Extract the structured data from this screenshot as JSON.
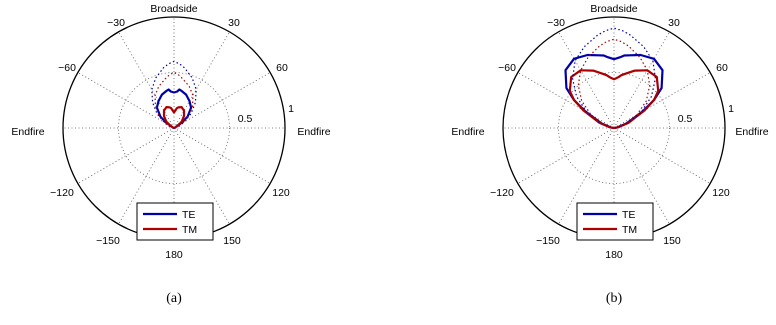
{
  "chart_data": [
    {
      "type": "polar-line",
      "caption": "(a)",
      "direction_labels": {
        "top": "Broadside",
        "left": "Endfire",
        "right": "Endfire"
      },
      "angle_ticks": [
        "−30",
        "30",
        "−60",
        "60",
        "−120",
        "120",
        "−150",
        "150",
        "180"
      ],
      "radial_ticks": [
        "0.5",
        "1"
      ],
      "rlim": [
        0,
        1
      ],
      "grid": true,
      "legend": {
        "placement": "bottom",
        "entries": [
          "TE",
          "TM"
        ]
      },
      "series": [
        {
          "name": "TE",
          "color": "#0000aa",
          "line": "solid",
          "angle_deg": [
            0,
            5,
            8,
            12,
            20,
            30,
            40,
            50,
            55,
            60,
            70,
            80,
            90
          ],
          "r": [
            0.32,
            0.33,
            0.35,
            0.34,
            0.32,
            0.28,
            0.24,
            0.16,
            0.09,
            0.02,
            0.01,
            0,
            0
          ]
        },
        {
          "name": "TM",
          "color": "#aa0000",
          "line": "solid",
          "angle_deg": [
            0,
            5,
            8,
            12,
            20,
            30,
            40,
            50,
            55,
            60,
            70,
            80,
            90
          ],
          "r": [
            0.14,
            0.16,
            0.18,
            0.19,
            0.2,
            0.18,
            0.14,
            0.09,
            0.05,
            0.02,
            0.01,
            0,
            0
          ]
        },
        {
          "name": "",
          "color": "#0000aa",
          "line": "dotted",
          "angle_deg": [
            0,
            5,
            10,
            20,
            30,
            40,
            50,
            60,
            70,
            80,
            90
          ],
          "r": [
            0.6,
            0.58,
            0.55,
            0.48,
            0.4,
            0.3,
            0.2,
            0.1,
            0.05,
            0.02,
            0
          ]
        },
        {
          "name": "",
          "color": "#aa0000",
          "line": "dotted",
          "angle_deg": [
            0,
            5,
            10,
            20,
            30,
            40,
            50,
            60,
            70,
            80,
            90
          ],
          "r": [
            0.5,
            0.48,
            0.45,
            0.4,
            0.34,
            0.26,
            0.17,
            0.09,
            0.04,
            0.01,
            0
          ]
        }
      ]
    },
    {
      "type": "polar-line",
      "caption": "(b)",
      "direction_labels": {
        "top": "Broadside",
        "left": "Endfire",
        "right": "Endfire"
      },
      "angle_ticks": [
        "−30",
        "30",
        "−60",
        "60",
        "−120",
        "120",
        "−150",
        "150",
        "180"
      ],
      "radial_ticks": [
        "0.5",
        "1"
      ],
      "rlim": [
        0,
        1
      ],
      "grid": true,
      "legend": {
        "placement": "bottom",
        "entries": [
          "TE",
          "TM"
        ]
      },
      "series": [
        {
          "name": "TE",
          "color": "#0000aa",
          "line": "solid",
          "angle_deg": [
            0,
            5,
            8,
            12,
            20,
            30,
            40,
            50,
            55,
            60,
            70,
            80,
            90
          ],
          "r": [
            0.62,
            0.64,
            0.66,
            0.67,
            0.7,
            0.72,
            0.68,
            0.56,
            0.44,
            0.3,
            0.12,
            0.03,
            0
          ]
        },
        {
          "name": "TM",
          "color": "#aa0000",
          "line": "solid",
          "angle_deg": [
            0,
            5,
            8,
            12,
            20,
            30,
            40,
            50,
            55,
            60,
            70,
            80,
            90
          ],
          "r": [
            0.44,
            0.46,
            0.48,
            0.5,
            0.55,
            0.6,
            0.6,
            0.52,
            0.44,
            0.32,
            0.14,
            0.04,
            0
          ]
        },
        {
          "name": "",
          "color": "#0000aa",
          "line": "dotted",
          "angle_deg": [
            0,
            5,
            10,
            20,
            30,
            40,
            50,
            60,
            70,
            80,
            90
          ],
          "r": [
            0.9,
            0.88,
            0.85,
            0.78,
            0.7,
            0.58,
            0.44,
            0.28,
            0.14,
            0.04,
            0
          ]
        },
        {
          "name": "",
          "color": "#aa0000",
          "line": "dotted",
          "angle_deg": [
            0,
            5,
            10,
            20,
            30,
            40,
            50,
            60,
            70,
            80,
            90
          ],
          "r": [
            0.8,
            0.78,
            0.75,
            0.68,
            0.6,
            0.5,
            0.38,
            0.24,
            0.12,
            0.03,
            0
          ]
        }
      ]
    }
  ]
}
